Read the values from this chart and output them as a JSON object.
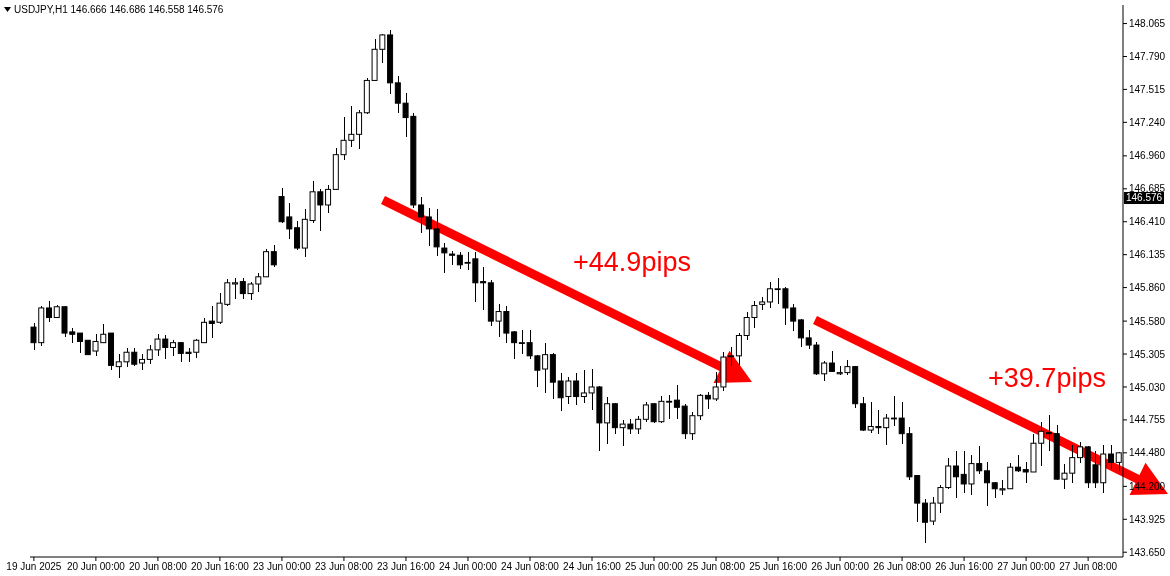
{
  "chart_data": {
    "type": "candlestick",
    "title": "USDJPY,H1 146.666 146.686 146.558 146.576",
    "color": "#000000",
    "categories": [
      "19 Jun 2025",
      null,
      null,
      null,
      null,
      null,
      null,
      null,
      "20 Jun 00:00",
      null,
      null,
      null,
      null,
      null,
      null,
      null,
      "20 Jun 08:00",
      null,
      null,
      null,
      null,
      null,
      null,
      null,
      "20 Jun 16:00",
      null,
      null,
      null,
      null,
      null,
      null,
      null,
      "23 Jun 00:00",
      null,
      null,
      null,
      null,
      null,
      null,
      null,
      "23 Jun 08:00",
      null,
      null,
      null,
      null,
      null,
      null,
      null,
      "23 Jun 16:00",
      null,
      null,
      null,
      null,
      null,
      null,
      null,
      "24 Jun 00:00",
      null,
      null,
      null,
      null,
      null,
      null,
      null,
      "24 Jun 08:00",
      null,
      null,
      null,
      null,
      null,
      null,
      null,
      "24 Jun 16:00",
      null,
      null,
      null,
      null,
      null,
      null,
      null,
      "25 Jun 00:00",
      null,
      null,
      null,
      null,
      null,
      null,
      null,
      "25 Jun 08:00",
      null,
      null,
      null,
      null,
      null,
      null,
      null,
      "25 Jun 16:00",
      null,
      null,
      null,
      null,
      null,
      null,
      null,
      "26 Jun 00:00",
      null,
      null,
      null,
      null,
      null,
      null,
      null,
      "26 Jun 08:00",
      null,
      null,
      null,
      null,
      null,
      null,
      null,
      "26 Jun 16:00",
      null,
      null,
      null,
      null,
      null,
      null,
      null,
      "27 Jun 00:00",
      null,
      null,
      null,
      null,
      null,
      null,
      null,
      "27 Jun 08:00",
      null,
      null,
      null,
      null
    ],
    "ohlc": [
      [
        145.53,
        145.56,
        145.34,
        145.4
      ],
      [
        145.4,
        145.7,
        145.38,
        145.69
      ],
      [
        145.69,
        145.74,
        145.58,
        145.61
      ],
      [
        145.61,
        145.71,
        145.61,
        145.7
      ],
      [
        145.7,
        145.7,
        145.45,
        145.48
      ],
      [
        145.49,
        145.52,
        145.4,
        145.47
      ],
      [
        145.48,
        145.48,
        145.32,
        145.41
      ],
      [
        145.42,
        145.42,
        145.3,
        145.3
      ],
      [
        145.33,
        145.47,
        145.29,
        145.41
      ],
      [
        145.4,
        145.55,
        145.4,
        145.47
      ],
      [
        145.48,
        145.48,
        145.18,
        145.21
      ],
      [
        145.2,
        145.3,
        145.11,
        145.24
      ],
      [
        145.24,
        145.35,
        145.2,
        145.32
      ],
      [
        145.32,
        145.35,
        145.21,
        145.22
      ],
      [
        145.23,
        145.3,
        145.18,
        145.26
      ],
      [
        145.26,
        145.38,
        145.23,
        145.34
      ],
      [
        145.34,
        145.47,
        145.29,
        145.43
      ],
      [
        145.43,
        145.46,
        145.27,
        145.36
      ],
      [
        145.36,
        145.42,
        145.29,
        145.4
      ],
      [
        145.4,
        145.4,
        145.24,
        145.31
      ],
      [
        145.32,
        145.35,
        145.24,
        145.31
      ],
      [
        145.32,
        145.43,
        145.28,
        145.42
      ],
      [
        145.4,
        145.6,
        145.4,
        145.57
      ],
      [
        145.58,
        145.7,
        145.44,
        145.56
      ],
      [
        145.57,
        145.81,
        145.56,
        145.73
      ],
      [
        145.72,
        145.93,
        145.71,
        145.9
      ],
      [
        145.89,
        145.94,
        145.77,
        145.9
      ],
      [
        145.91,
        145.94,
        145.77,
        145.81
      ],
      [
        145.81,
        145.9,
        145.76,
        145.89
      ],
      [
        145.89,
        145.98,
        145.83,
        145.95
      ],
      [
        145.95,
        146.18,
        145.95,
        146.16
      ],
      [
        146.16,
        146.21,
        146.04,
        146.05
      ],
      [
        146.62,
        146.69,
        146.4,
        146.41
      ],
      [
        146.45,
        146.56,
        146.27,
        146.35
      ],
      [
        146.36,
        146.41,
        146.18,
        146.19
      ],
      [
        146.19,
        146.51,
        146.12,
        146.43
      ],
      [
        146.42,
        146.75,
        146.4,
        146.66
      ],
      [
        146.66,
        146.68,
        146.34,
        146.55
      ],
      [
        146.55,
        146.71,
        146.49,
        146.68
      ],
      [
        146.68,
        147.02,
        146.68,
        146.97
      ],
      [
        146.97,
        147.28,
        146.93,
        147.09
      ],
      [
        147.09,
        147.37,
        147.04,
        147.14
      ],
      [
        147.14,
        147.34,
        147.02,
        147.32
      ],
      [
        147.32,
        147.61,
        147.31,
        147.59
      ],
      [
        147.59,
        147.93,
        147.59,
        147.85
      ],
      [
        147.85,
        147.97,
        147.74,
        147.97
      ],
      [
        147.97,
        148.01,
        147.48,
        147.57
      ],
      [
        147.57,
        147.62,
        147.32,
        147.4
      ],
      [
        147.4,
        147.48,
        147.12,
        147.28
      ],
      [
        147.29,
        147.31,
        146.53,
        146.55
      ],
      [
        146.55,
        146.61,
        146.32,
        146.45
      ],
      [
        146.45,
        146.52,
        146.21,
        146.35
      ],
      [
        146.35,
        146.51,
        146.13,
        146.2
      ],
      [
        146.19,
        146.23,
        145.99,
        146.15
      ],
      [
        146.14,
        146.16,
        146.05,
        146.13
      ],
      [
        146.13,
        146.15,
        146.02,
        146.05
      ],
      [
        146.07,
        146.15,
        146.01,
        146.07
      ],
      [
        146.1,
        146.15,
        145.74,
        145.9
      ],
      [
        145.91,
        146.03,
        145.68,
        145.9
      ],
      [
        145.9,
        145.92,
        145.54,
        145.58
      ],
      [
        145.58,
        145.72,
        145.45,
        145.66
      ],
      [
        145.66,
        145.7,
        145.4,
        145.48
      ],
      [
        145.49,
        145.49,
        145.27,
        145.4
      ],
      [
        145.4,
        145.5,
        145.31,
        145.4
      ],
      [
        145.4,
        145.5,
        145.27,
        145.29
      ],
      [
        145.29,
        145.29,
        145.03,
        145.17
      ],
      [
        145.18,
        145.39,
        144.98,
        145.3
      ],
      [
        145.3,
        145.31,
        144.93,
        145.07
      ],
      [
        145.08,
        145.14,
        144.83,
        144.94
      ],
      [
        144.95,
        145.11,
        144.89,
        145.08
      ],
      [
        145.08,
        145.14,
        144.88,
        144.95
      ],
      [
        144.95,
        145.17,
        144.9,
        144.98
      ],
      [
        144.98,
        145.18,
        144.84,
        145.03
      ],
      [
        145.03,
        145.03,
        144.5,
        144.73
      ],
      [
        144.73,
        144.94,
        144.56,
        144.89
      ],
      [
        144.89,
        144.89,
        144.64,
        144.69
      ],
      [
        144.69,
        144.75,
        144.54,
        144.72
      ],
      [
        144.72,
        144.76,
        144.64,
        144.68
      ],
      [
        144.68,
        144.78,
        144.64,
        144.76
      ],
      [
        144.76,
        144.9,
        144.74,
        144.88
      ],
      [
        144.89,
        144.89,
        144.73,
        144.74
      ],
      [
        144.74,
        144.95,
        144.73,
        144.91
      ],
      [
        144.91,
        144.96,
        144.77,
        144.91
      ],
      [
        144.92,
        145.04,
        144.77,
        144.86
      ],
      [
        144.87,
        144.88,
        144.6,
        144.64
      ],
      [
        144.64,
        144.82,
        144.59,
        144.79
      ],
      [
        144.79,
        144.97,
        144.76,
        144.96
      ],
      [
        144.96,
        144.98,
        144.85,
        144.93
      ],
      [
        144.93,
        145.15,
        144.92,
        145.03
      ],
      [
        145.03,
        145.32,
        145.0,
        145.28
      ],
      [
        145.29,
        145.36,
        145.21,
        145.29
      ],
      [
        145.29,
        145.48,
        145.22,
        145.46
      ],
      [
        145.46,
        145.65,
        145.43,
        145.61
      ],
      [
        145.61,
        145.74,
        145.53,
        145.71
      ],
      [
        145.72,
        145.78,
        145.68,
        145.74
      ],
      [
        145.74,
        145.9,
        145.69,
        145.85
      ],
      [
        145.85,
        145.94,
        145.73,
        145.85
      ],
      [
        145.85,
        145.86,
        145.55,
        145.69
      ],
      [
        145.69,
        145.72,
        145.5,
        145.58
      ],
      [
        145.59,
        145.59,
        145.37,
        145.44
      ],
      [
        145.44,
        145.5,
        145.35,
        145.38
      ],
      [
        145.38,
        145.4,
        145.13,
        145.14
      ],
      [
        145.14,
        145.24,
        145.08,
        145.23
      ],
      [
        145.23,
        145.33,
        145.16,
        145.16
      ],
      [
        145.14,
        145.2,
        145.13,
        145.15
      ],
      [
        145.15,
        145.25,
        145.13,
        145.2
      ],
      [
        145.2,
        145.2,
        144.86,
        144.89
      ],
      [
        144.89,
        144.94,
        144.67,
        144.67
      ],
      [
        144.67,
        144.9,
        144.65,
        144.7
      ],
      [
        144.7,
        144.83,
        144.64,
        144.69
      ],
      [
        144.69,
        144.8,
        144.55,
        144.77
      ],
      [
        144.77,
        144.95,
        144.71,
        144.77
      ],
      [
        144.77,
        144.9,
        144.56,
        144.64
      ],
      [
        144.64,
        144.69,
        144.26,
        144.28
      ],
      [
        144.29,
        144.29,
        143.91,
        144.06
      ],
      [
        144.06,
        144.09,
        143.73,
        143.9
      ],
      [
        143.91,
        144.11,
        143.88,
        144.06
      ],
      [
        144.06,
        144.21,
        143.98,
        144.19
      ],
      [
        144.19,
        144.43,
        144.18,
        144.37
      ],
      [
        144.37,
        144.49,
        144.11,
        144.28
      ],
      [
        144.3,
        144.49,
        144.15,
        144.22
      ],
      [
        144.22,
        144.46,
        144.13,
        144.39
      ],
      [
        144.39,
        144.53,
        144.31,
        144.33
      ],
      [
        144.33,
        144.4,
        144.04,
        144.23
      ],
      [
        144.23,
        144.23,
        144.11,
        144.18
      ],
      [
        144.17,
        144.25,
        144.13,
        144.18
      ],
      [
        144.18,
        144.39,
        144.18,
        144.36
      ],
      [
        144.36,
        144.46,
        144.32,
        144.33
      ],
      [
        144.34,
        144.4,
        144.23,
        144.32
      ],
      [
        144.32,
        144.63,
        144.32,
        144.56
      ],
      [
        144.56,
        144.73,
        144.37,
        144.66
      ],
      [
        144.65,
        144.79,
        144.5,
        144.64
      ],
      [
        144.64,
        144.71,
        144.26,
        144.26
      ],
      [
        144.26,
        144.38,
        144.18,
        144.31
      ],
      [
        144.31,
        144.54,
        144.23,
        144.44
      ],
      [
        144.44,
        144.57,
        144.4,
        144.53
      ],
      [
        144.53,
        144.53,
        144.19,
        144.23
      ],
      [
        144.38,
        144.49,
        144.19,
        144.23
      ],
      [
        144.23,
        144.54,
        144.15,
        144.47
      ],
      [
        144.47,
        144.54,
        144.35,
        144.4
      ],
      [
        144.4,
        144.48,
        144.33,
        144.48
      ]
    ],
    "ylim": [
      143.61,
      148.22
    ],
    "yticks": [
      {
        "value": 143.65,
        "label": "143.650"
      },
      143.925,
      {
        "value": 144.2,
        "label": "144.200"
      },
      {
        "value": 144.48,
        "label": "144.480"
      },
      144.755,
      {
        "value": 145.03,
        "label": "145.030"
      },
      145.305,
      {
        "value": 145.58,
        "label": "145.580"
      },
      {
        "value": 145.86,
        "label": "145.860"
      },
      146.135,
      {
        "value": 146.41,
        "label": "146.410"
      },
      146.685,
      {
        "value": 146.96,
        "label": "146.960"
      },
      {
        "value": 147.24,
        "label": "147.240"
      },
      147.515,
      {
        "value": 147.79,
        "label": "147.790"
      },
      148.065
    ],
    "annotations": [
      "+44.9pips",
      "+39.7pips",
      "146.576"
    ]
  }
}
